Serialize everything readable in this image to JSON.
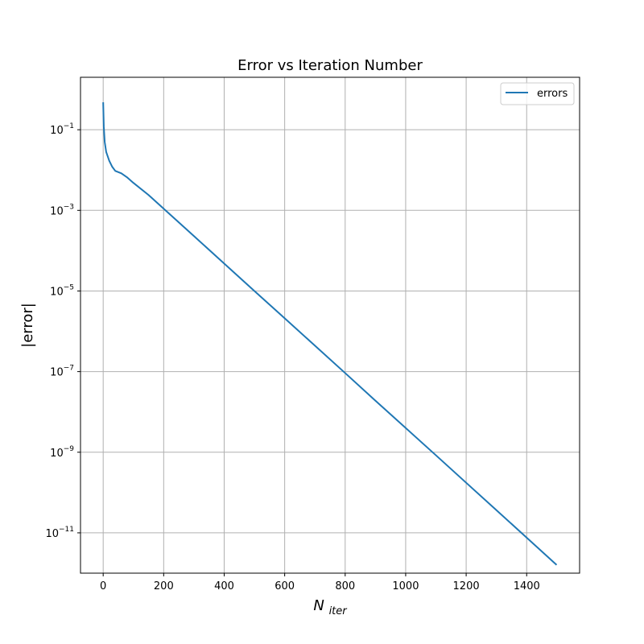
{
  "chart_data": {
    "type": "line",
    "title": "Error vs Iteration Number",
    "xlabel_base": "N",
    "xlabel_sub": "iter",
    "ylabel": "|error|",
    "xlim": [
      -75,
      1575
    ],
    "ylim": [
      1e-12,
      2.0
    ],
    "yscale": "log",
    "x_ticks": [
      0,
      200,
      400,
      600,
      800,
      1000,
      1200,
      1400
    ],
    "y_ticks": [
      {
        "value": 1e-11,
        "base": "10",
        "exp": "−11"
      },
      {
        "value": 1e-09,
        "base": "10",
        "exp": "−9"
      },
      {
        "value": 1e-07,
        "base": "10",
        "exp": "−7"
      },
      {
        "value": 1e-05,
        "base": "10",
        "exp": "−5"
      },
      {
        "value": 0.001,
        "base": "10",
        "exp": "−3"
      },
      {
        "value": 0.1,
        "base": "10",
        "exp": "−1"
      }
    ],
    "grid": true,
    "legend_position": "upper right",
    "line_color": "#1f77b4",
    "grid_color": "#b0b0b0",
    "series": [
      {
        "name": "errors",
        "color": "#1f77b4",
        "x": [
          0,
          2,
          5,
          10,
          20,
          30,
          40,
          60,
          80,
          100,
          150,
          200,
          300,
          400,
          500,
          600,
          700,
          800,
          900,
          1000,
          1100,
          1200,
          1300,
          1400,
          1499
        ],
        "y": [
          0.48,
          0.12,
          0.05,
          0.028,
          0.017,
          0.012,
          0.0095,
          0.0083,
          0.0065,
          0.0048,
          0.0024,
          0.0011,
          0.00023,
          4.8e-05,
          1e-05,
          2.1e-06,
          4.4e-07,
          9.2e-08,
          1.9e-08,
          4e-09,
          8.4e-10,
          1.75e-10,
          3.65e-11,
          7.6e-12,
          1.6e-12
        ]
      }
    ]
  }
}
